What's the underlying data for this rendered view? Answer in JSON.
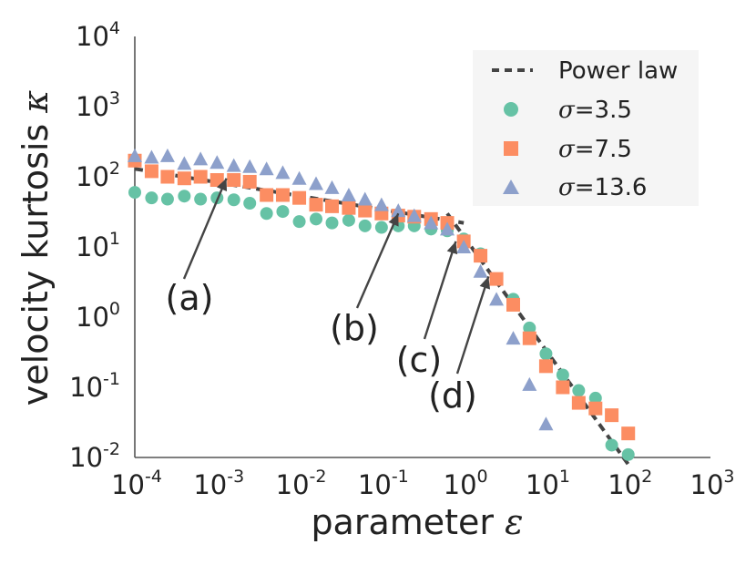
{
  "chart_data": {
    "type": "scatter",
    "xscale": "log",
    "yscale": "log",
    "xlabel": "parameter",
    "xlabel_symbol": "ε",
    "ylabel": "velocity kurtosis",
    "ylabel_symbol": "κ",
    "xlim": [
      0.0001,
      1000
    ],
    "ylim": [
      0.01,
      10000
    ],
    "x_ticks": [
      {
        "value": 0.0001,
        "base": "10",
        "exp": "-4"
      },
      {
        "value": 0.001,
        "base": "10",
        "exp": "-3"
      },
      {
        "value": 0.01,
        "base": "10",
        "exp": "-2"
      },
      {
        "value": 0.1,
        "base": "10",
        "exp": "-1"
      },
      {
        "value": 1,
        "base": "10",
        "exp": "0"
      },
      {
        "value": 10,
        "base": "10",
        "exp": "1"
      },
      {
        "value": 100,
        "base": "10",
        "exp": "2"
      },
      {
        "value": 1000,
        "base": "10",
        "exp": "3"
      }
    ],
    "y_ticks": [
      {
        "value": 0.01,
        "base": "10",
        "exp": "-2"
      },
      {
        "value": 0.1,
        "base": "10",
        "exp": "-1"
      },
      {
        "value": 1,
        "base": "10",
        "exp": "0"
      },
      {
        "value": 10,
        "base": "10",
        "exp": "1"
      },
      {
        "value": 100,
        "base": "10",
        "exp": "2"
      },
      {
        "value": 1000,
        "base": "10",
        "exp": "3"
      },
      {
        "value": 10000,
        "base": "10",
        "exp": "4"
      }
    ],
    "legend_position": "top-right",
    "series": [
      {
        "name": "σ=3.5",
        "legend_label": "=3.5",
        "marker": "circle",
        "color": "#66c2a5",
        "x": [
          0.0001,
          0.00016,
          0.00025,
          0.0004,
          0.00063,
          0.001,
          0.0016,
          0.0025,
          0.004,
          0.0063,
          0.01,
          0.016,
          0.025,
          0.04,
          0.063,
          0.1,
          0.16,
          0.25,
          0.4,
          0.63,
          1.0,
          1.6,
          2.5,
          4.0,
          6.3,
          10,
          16,
          25,
          40,
          63,
          100
        ],
        "y": [
          60,
          50,
          48,
          53,
          48,
          50,
          47,
          42,
          30,
          32,
          23,
          25,
          22,
          24,
          20,
          19,
          20,
          20,
          18,
          17,
          13,
          8,
          3.5,
          1.8,
          0.7,
          0.3,
          0.15,
          0.09,
          0.07,
          0.015,
          0.011
        ]
      },
      {
        "name": "σ=7.5",
        "legend_label": "=7.5",
        "marker": "square",
        "color": "#fc8d62",
        "x": [
          0.0001,
          0.00016,
          0.00025,
          0.0004,
          0.00063,
          0.001,
          0.0016,
          0.0025,
          0.004,
          0.0063,
          0.01,
          0.016,
          0.025,
          0.04,
          0.063,
          0.1,
          0.16,
          0.25,
          0.4,
          0.63,
          1.0,
          1.6,
          2.5,
          4.0,
          6.3,
          10,
          16,
          25,
          40,
          63,
          100
        ],
        "y": [
          170,
          120,
          100,
          95,
          100,
          90,
          90,
          85,
          55,
          55,
          50,
          40,
          38,
          36,
          33,
          30,
          28,
          27,
          25,
          22,
          12,
          7.5,
          3.5,
          1.5,
          0.5,
          0.2,
          0.1,
          0.06,
          0.05,
          0.04,
          0.022
        ]
      },
      {
        "name": "σ=13.6",
        "legend_label": "=13.6",
        "marker": "triangle",
        "color": "#8da0cb",
        "x": [
          0.0001,
          0.00016,
          0.00025,
          0.0004,
          0.00063,
          0.001,
          0.0016,
          0.0025,
          0.004,
          0.0063,
          0.01,
          0.016,
          0.025,
          0.04,
          0.063,
          0.1,
          0.16,
          0.25,
          0.4,
          0.63,
          1.0,
          1.6,
          2.5,
          4.0,
          6.3,
          10
        ],
        "y": [
          200,
          190,
          200,
          155,
          180,
          160,
          145,
          140,
          130,
          115,
          95,
          80,
          70,
          55,
          48,
          40,
          33,
          28,
          22,
          18,
          10,
          4.5,
          1.8,
          0.5,
          0.11,
          0.03
        ]
      }
    ],
    "lines": [
      {
        "name": "Power law",
        "style": "dashed",
        "color": "#444444",
        "x": [
          0.0001,
          1.0
        ],
        "y": [
          130,
          22
        ]
      },
      {
        "name": "Power law",
        "style": "dashed",
        "color": "#444444",
        "x": [
          0.63,
          100
        ],
        "y": [
          30,
          0.008
        ]
      }
    ],
    "annotations": [
      {
        "label": "(a)",
        "tip_x": 0.0013,
        "tip_y": 95
      },
      {
        "label": "(b)",
        "tip_x": 0.16,
        "tip_y": 30
      },
      {
        "label": "(c)",
        "tip_x": 0.8,
        "tip_y": 12
      },
      {
        "label": "(d)",
        "tip_x": 2.0,
        "tip_y": 3.8
      }
    ],
    "legend": [
      {
        "kind": "line",
        "label": "Power law"
      },
      {
        "kind": "circle",
        "symbol": "σ",
        "label": "=3.5"
      },
      {
        "kind": "square",
        "symbol": "σ",
        "label": "=7.5"
      },
      {
        "kind": "triangle",
        "symbol": "σ",
        "label": "=13.6"
      }
    ],
    "colors": {
      "axis": "#555555",
      "text": "#222222",
      "legend_bg": "#f5f5f5",
      "powerlaw": "#444444"
    }
  }
}
